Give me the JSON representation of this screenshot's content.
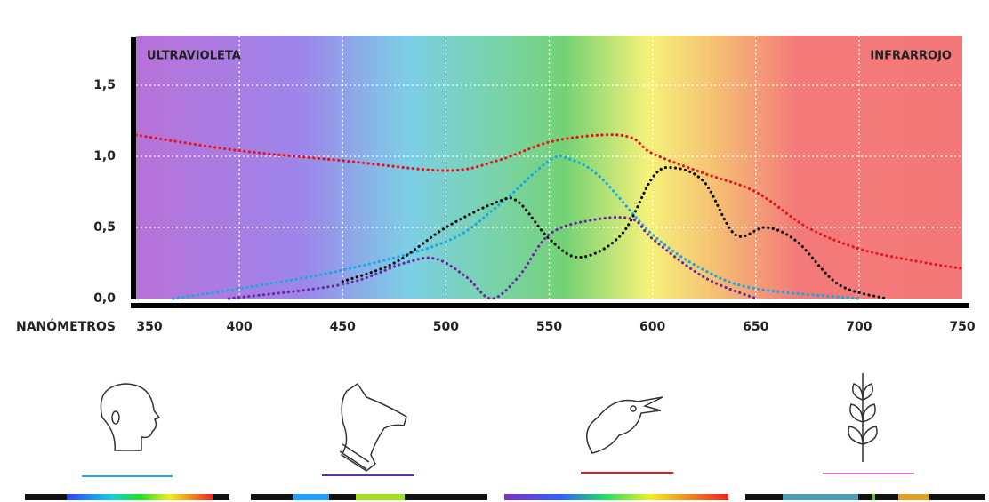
{
  "chart_data": {
    "type": "line",
    "x_label": "NANÓMETROS",
    "annotations": [
      "ULTRAVIOLETA",
      "INFRARROJO"
    ],
    "xlim": [
      350,
      750
    ],
    "xticks": [
      350,
      400,
      450,
      500,
      550,
      600,
      650,
      700,
      750
    ],
    "ylim": [
      0,
      1.85
    ],
    "yticks": [
      {
        "value": 0,
        "label": "0,0"
      },
      {
        "value": 0.5,
        "label": "0,5"
      },
      {
        "value": 1.0,
        "label": "1,0"
      },
      {
        "value": 1.5,
        "label": "1,5"
      }
    ],
    "grid": true,
    "series": [
      {
        "color": "#e8141c",
        "x": [
          350,
          400,
          450,
          500,
          525,
          550,
          575,
          590,
          600,
          625,
          650,
          675,
          700,
          725,
          750
        ],
        "values": [
          1.15,
          1.04,
          0.97,
          0.9,
          0.97,
          1.1,
          1.15,
          1.13,
          1.02,
          0.88,
          0.75,
          0.5,
          0.35,
          0.27,
          0.21
        ]
      },
      {
        "color": "#1aa8e0",
        "x": [
          368,
          400,
          450,
          500,
          525,
          550,
          560,
          575,
          600,
          625,
          650,
          700
        ],
        "values": [
          0.0,
          0.07,
          0.2,
          0.4,
          0.65,
          0.97,
          0.98,
          0.85,
          0.45,
          0.2,
          0.07,
          0.0
        ]
      },
      {
        "color": "#111111",
        "x": [
          450,
          475,
          500,
          525,
          535,
          550,
          565,
          585,
          600,
          610,
          625,
          640,
          655,
          670,
          690,
          713
        ],
        "values": [
          0.12,
          0.25,
          0.5,
          0.68,
          0.68,
          0.42,
          0.29,
          0.45,
          0.85,
          0.92,
          0.82,
          0.45,
          0.5,
          0.4,
          0.1,
          0.0
        ]
      },
      {
        "color": "#6a2aa0",
        "x": [
          395,
          450,
          480,
          495,
          510,
          522,
          535,
          550,
          570,
          590,
          600,
          625,
          650
        ],
        "values": [
          0.0,
          0.1,
          0.25,
          0.28,
          0.15,
          0.0,
          0.15,
          0.45,
          0.55,
          0.56,
          0.42,
          0.15,
          0.0
        ]
      }
    ]
  }
}
